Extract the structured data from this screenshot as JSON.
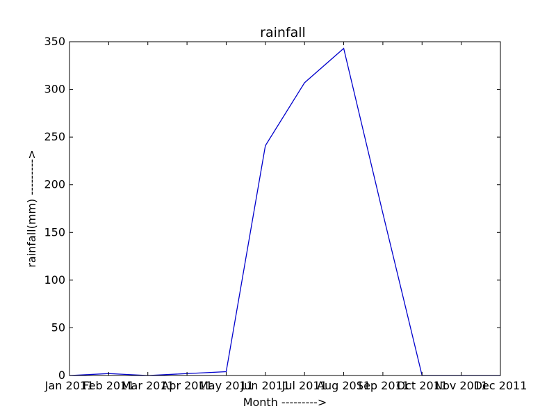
{
  "chart_data": {
    "type": "line",
    "title": "rainfall",
    "xlabel": "Month  --------->",
    "ylabel": "rainfall(mm)  --------->",
    "categories": [
      "Jan 2011",
      "Feb 2011",
      "Mar 2011",
      "Apr 2011",
      "May 2011",
      "Jun 2011",
      "Jul 2011",
      "Aug 2011",
      "Sep 2011",
      "Oct 2011",
      "Nov 2011",
      "Dec 2011"
    ],
    "series": [
      {
        "values": [
          0,
          2,
          0,
          2,
          4,
          241,
          307,
          343,
          170,
          0,
          0,
          0
        ],
        "color": "#0000cc"
      }
    ],
    "ylim": [
      0,
      350
    ],
    "yticks": [
      0,
      50,
      100,
      150,
      200,
      250,
      300,
      350
    ],
    "yticklabels": [
      "0",
      "50",
      "100",
      "150",
      "200",
      "250",
      "300",
      "350"
    ],
    "grid": false,
    "legend": "none"
  }
}
